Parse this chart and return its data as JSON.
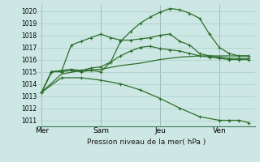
{
  "bg_color": "#cde8e4",
  "grid_color": "#b0cfcb",
  "line_color": "#2d6e2d",
  "marker_color": "#2d6e2d",
  "xlabel_text": "Pression niveau de la mer( hPa )",
  "xtick_labels": [
    "Mer",
    "Sam",
    "Jeu",
    "Ven"
  ],
  "xtick_positions": [
    0,
    3,
    6,
    9
  ],
  "ylim": [
    1010.5,
    1020.5
  ],
  "xlim": [
    -0.2,
    10.8
  ],
  "yticks": [
    1011,
    1012,
    1013,
    1014,
    1015,
    1016,
    1017,
    1018,
    1019,
    1020
  ],
  "lines": [
    {
      "x": [
        0.0,
        0.5,
        1.0,
        1.5,
        2.0,
        2.5,
        3.0,
        3.5,
        4.0,
        4.5,
        5.0,
        5.5,
        6.0,
        6.5,
        7.0,
        7.5,
        8.0,
        8.5,
        9.0,
        9.5,
        10.0,
        10.5
      ],
      "y": [
        1013.3,
        1015.0,
        1015.0,
        1015.1,
        1015.0,
        1015.1,
        1015.0,
        1015.8,
        1017.5,
        1018.3,
        1019.0,
        1019.5,
        1019.9,
        1020.2,
        1020.1,
        1019.8,
        1019.4,
        1018.1,
        1017.0,
        1016.5,
        1016.3,
        1016.3
      ],
      "has_markers": true
    },
    {
      "x": [
        0.0,
        0.5,
        1.0,
        1.5,
        2.0,
        2.5,
        3.0,
        3.5,
        4.0,
        4.5,
        5.0,
        5.5,
        6.0,
        6.5,
        7.0,
        7.5,
        8.0,
        8.5,
        9.0,
        9.5,
        10.0,
        10.5
      ],
      "y": [
        1013.3,
        1015.0,
        1015.0,
        1017.2,
        1017.5,
        1017.8,
        1018.1,
        1017.8,
        1017.6,
        1017.6,
        1017.7,
        1017.8,
        1018.0,
        1018.1,
        1017.5,
        1017.2,
        1016.5,
        1016.3,
        1016.2,
        1016.1,
        1016.1,
        1016.1
      ],
      "has_markers": true
    },
    {
      "x": [
        0.0,
        0.5,
        1.0,
        1.5,
        2.0,
        2.5,
        3.0,
        3.5,
        4.0,
        4.5,
        5.0,
        5.5,
        6.0,
        6.5,
        7.0,
        7.5,
        8.0,
        8.5,
        9.0,
        9.5,
        10.0,
        10.5
      ],
      "y": [
        1013.3,
        1015.0,
        1015.1,
        1015.2,
        1015.1,
        1015.3,
        1015.4,
        1015.8,
        1016.3,
        1016.7,
        1017.0,
        1017.1,
        1016.9,
        1016.8,
        1016.7,
        1016.5,
        1016.3,
        1016.2,
        1016.1,
        1016.0,
        1016.0,
        1016.0
      ],
      "has_markers": true
    },
    {
      "x": [
        0.0,
        1.0,
        2.0,
        3.0,
        4.0,
        5.0,
        6.0,
        7.0,
        8.0,
        9.0,
        10.0,
        10.5
      ],
      "y": [
        1013.3,
        1014.8,
        1015.1,
        1015.2,
        1015.5,
        1015.7,
        1016.0,
        1016.2,
        1016.3,
        1016.3,
        1016.3,
        1016.3
      ],
      "has_markers": false
    },
    {
      "x": [
        0.0,
        1.0,
        2.0,
        3.0,
        4.0,
        5.0,
        6.0,
        7.0,
        8.0,
        9.0,
        9.5,
        10.0,
        10.5
      ],
      "y": [
        1013.3,
        1014.5,
        1014.5,
        1014.3,
        1014.0,
        1013.5,
        1012.8,
        1012.0,
        1011.3,
        1011.0,
        1011.0,
        1011.0,
        1010.8
      ],
      "has_markers": true
    }
  ]
}
